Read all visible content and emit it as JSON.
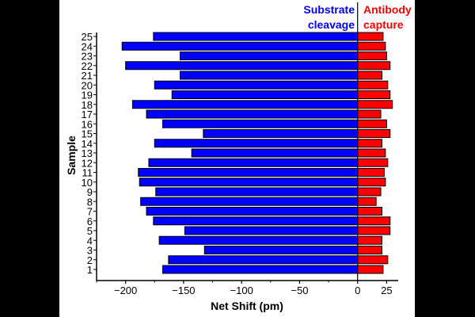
{
  "chart_data": {
    "type": "bar",
    "orientation": "horizontal",
    "title": "",
    "xlabel": "Net Shift (pm)",
    "ylabel": "Sample",
    "xlim": [
      -225,
      35
    ],
    "x_ticks": [
      -200,
      -150,
      -100,
      -50,
      0,
      25
    ],
    "x_tick_labels": [
      "−200",
      "−150",
      "−100",
      "−50",
      "0",
      "25"
    ],
    "categories": [
      "1",
      "2",
      "3",
      "4",
      "5",
      "6",
      "7",
      "8",
      "9",
      "10",
      "11",
      "12",
      "13",
      "14",
      "15",
      "16",
      "17",
      "18",
      "19",
      "20",
      "21",
      "22",
      "23",
      "24",
      "25"
    ],
    "series": [
      {
        "name": "Substrate cleavage",
        "legend_lines": [
          "Substrate",
          "cleavage"
        ],
        "color": "#0000ff",
        "values": [
          -168,
          -163,
          -132,
          -171,
          -149,
          -176,
          -182,
          -187,
          -174,
          -188,
          -189,
          -180,
          -143,
          -175,
          -133,
          -168,
          -182,
          -194,
          -160,
          -175,
          -153,
          -200,
          -153,
          -203,
          -176
        ]
      },
      {
        "name": "Antibody capture",
        "legend_lines": [
          "Antibody",
          "capture"
        ],
        "color": "#ff0000",
        "values": [
          22,
          26,
          21,
          21,
          28,
          28,
          21,
          16,
          20,
          24,
          23,
          26,
          24,
          21,
          28,
          25,
          20,
          30,
          28,
          26,
          21,
          28,
          25,
          24,
          22
        ]
      }
    ],
    "grid": false,
    "legend_position": "top-right"
  }
}
